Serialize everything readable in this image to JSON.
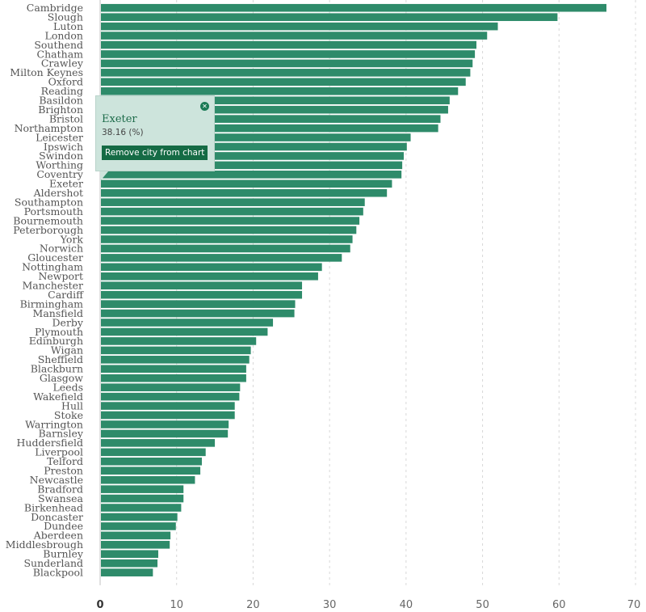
{
  "chart_data": {
    "type": "bar",
    "orientation": "horizontal",
    "categories": [
      "Cambridge",
      "Slough",
      "Luton",
      "London",
      "Southend",
      "Chatham",
      "Crawley",
      "Milton Keynes",
      "Oxford",
      "Reading",
      "Basildon",
      "Brighton",
      "Bristol",
      "Northampton",
      "Leicester",
      "Ipswich",
      "Swindon",
      "Worthing",
      "Coventry",
      "Exeter",
      "Aldershot",
      "Southampton",
      "Portsmouth",
      "Bournemouth",
      "Peterborough",
      "York",
      "Norwich",
      "Gloucester",
      "Nottingham",
      "Newport",
      "Manchester",
      "Cardiff",
      "Birmingham",
      "Mansfield",
      "Derby",
      "Plymouth",
      "Edinburgh",
      "Wigan",
      "Sheffield",
      "Blackburn",
      "Glasgow",
      "Leeds",
      "Wakefield",
      "Hull",
      "Stoke",
      "Warrington",
      "Barnsley",
      "Huddersfield",
      "Liverpool",
      "Telford",
      "Preston",
      "Newcastle",
      "Bradford",
      "Swansea",
      "Birkenhead",
      "Doncaster",
      "Dundee",
      "Aberdeen",
      "Middlesbrough",
      "Burnley",
      "Sunderland",
      "Blackpool"
    ],
    "values": [
      66.2,
      59.8,
      52.0,
      50.6,
      49.2,
      49.0,
      48.7,
      48.4,
      47.8,
      46.8,
      45.7,
      45.5,
      44.5,
      44.2,
      40.6,
      40.1,
      39.7,
      39.5,
      39.4,
      38.16,
      37.5,
      34.6,
      34.4,
      33.9,
      33.5,
      33.0,
      32.7,
      31.6,
      29.0,
      28.5,
      26.4,
      26.4,
      25.5,
      25.4,
      22.6,
      21.9,
      20.4,
      19.7,
      19.5,
      19.1,
      19.1,
      18.3,
      18.2,
      17.6,
      17.6,
      16.8,
      16.7,
      15.0,
      13.8,
      13.3,
      13.1,
      12.4,
      10.9,
      10.9,
      10.6,
      10.1,
      9.9,
      9.2,
      9.1,
      7.6,
      7.5,
      6.9
    ],
    "xlim": [
      0,
      70
    ],
    "xticks": [
      "0",
      "10",
      "20",
      "30",
      "40",
      "50",
      "60",
      "70"
    ],
    "grid": true,
    "bar_color": "#2e8b6a"
  },
  "tooltip": {
    "city": "Exeter",
    "value": "38.16 (%)",
    "remove_label": "Remove city from chart",
    "close_icon": "close-icon"
  },
  "colors": {
    "bar": "#2e8b6a",
    "tooltip_bg": "#cde4dc",
    "button": "#156b45"
  }
}
